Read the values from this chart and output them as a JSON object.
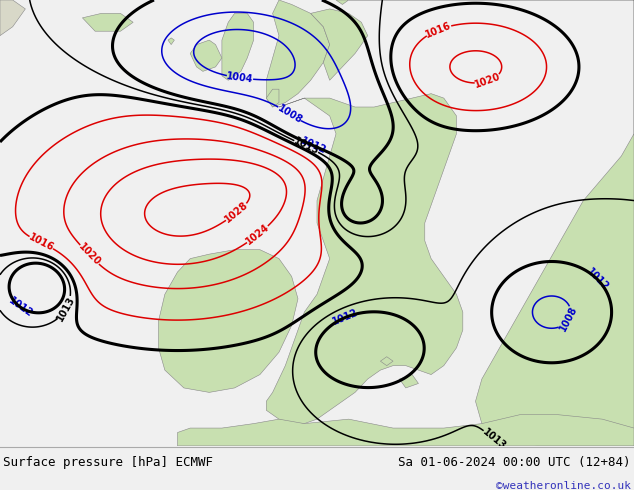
{
  "title_left": "Surface pressure [hPa] ECMWF",
  "title_right": "Sa 01-06-2024 00:00 UTC (12+84)",
  "watermark": "©weatheronline.co.uk",
  "ocean_color": "#e8e8f0",
  "land_color": "#c8e0b0",
  "land_border_color": "#888888",
  "footer_bg": "#f0f0f0",
  "line_red": "#dd0000",
  "line_blue": "#0000cc",
  "line_black": "#000000",
  "figsize": [
    6.34,
    4.9
  ],
  "dpi": 100,
  "label_fontsize": 7.0
}
